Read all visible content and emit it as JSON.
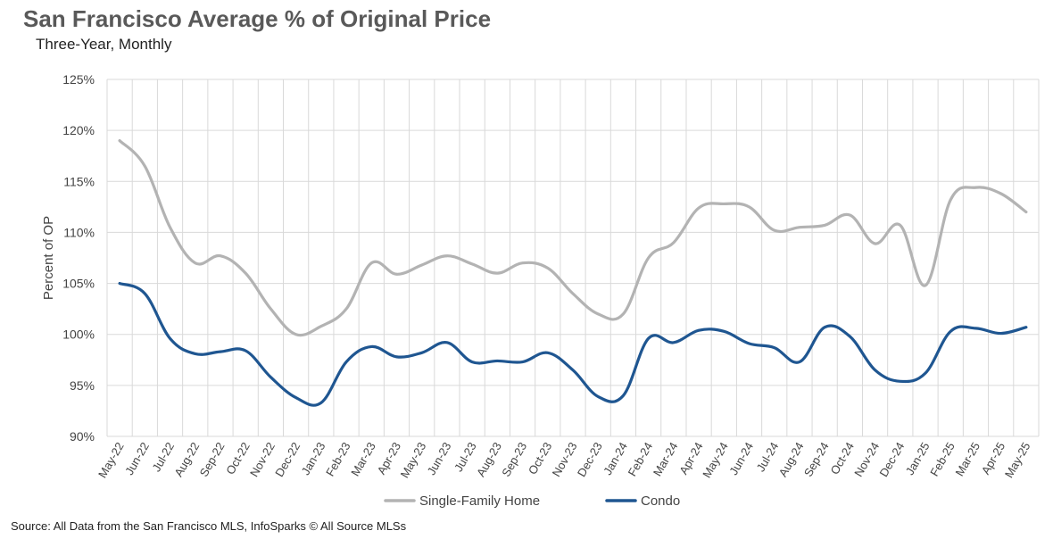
{
  "header": {
    "title": "San Francisco Average % of Original Price",
    "subtitle": "Three-Year, Monthly"
  },
  "footer": {
    "source": "Source: All Data from the San Francisco MLS, InfoSparks © All Source MLSs"
  },
  "chart_data": {
    "type": "line",
    "title": "San Francisco Average % of Original Price",
    "subtitle": "Three-Year, Monthly",
    "ylabel": "Percent of OP",
    "xlabel": "",
    "ylim": [
      90,
      125
    ],
    "yticks": [
      90,
      95,
      100,
      105,
      110,
      115,
      120,
      125
    ],
    "ytick_labels": [
      "90%",
      "95%",
      "100%",
      "105%",
      "110%",
      "115%",
      "120%",
      "125%"
    ],
    "grid": true,
    "legend_position": "bottom",
    "x": [
      "May-22",
      "Jun-22",
      "Jul-22",
      "Aug-22",
      "Sep-22",
      "Oct-22",
      "Nov-22",
      "Dec-22",
      "Jan-23",
      "Feb-23",
      "Mar-23",
      "Apr-23",
      "May-23",
      "Jun-23",
      "Jul-23",
      "Aug-23",
      "Sep-23",
      "Oct-23",
      "Nov-23",
      "Dec-23",
      "Jan-24",
      "Feb-24",
      "Mar-24",
      "Apr-24",
      "May-24",
      "Jun-24",
      "Jul-24",
      "Aug-24",
      "Sep-24",
      "Oct-24",
      "Nov-24",
      "Dec-24",
      "Jan-25",
      "Feb-25",
      "Mar-25",
      "Apr-25",
      "May-25"
    ],
    "series": [
      {
        "name": "Single-Family Home",
        "color": "#b3b3b3",
        "values": [
          119.0,
          116.5,
          110.5,
          107.0,
          107.7,
          106.0,
          102.5,
          100.0,
          100.8,
          102.5,
          107.0,
          105.9,
          106.8,
          107.7,
          106.9,
          106.0,
          107.0,
          106.5,
          104.0,
          102.0,
          102.0,
          107.5,
          109.0,
          112.4,
          112.8,
          112.5,
          110.2,
          110.5,
          110.7,
          111.7,
          108.9,
          110.7,
          104.8,
          113.2,
          114.4,
          113.8,
          112.0
        ]
      },
      {
        "name": "Condo",
        "color": "#1f5691",
        "values": [
          105.0,
          104.0,
          99.6,
          98.1,
          98.3,
          98.4,
          95.8,
          93.8,
          93.3,
          97.3,
          98.8,
          97.8,
          98.2,
          99.2,
          97.3,
          97.4,
          97.3,
          98.2,
          96.5,
          93.9,
          94.0,
          99.6,
          99.2,
          100.4,
          100.3,
          99.1,
          98.7,
          97.3,
          100.7,
          99.8,
          96.5,
          95.4,
          96.2,
          100.3,
          100.6,
          100.1,
          100.7
        ]
      }
    ]
  }
}
